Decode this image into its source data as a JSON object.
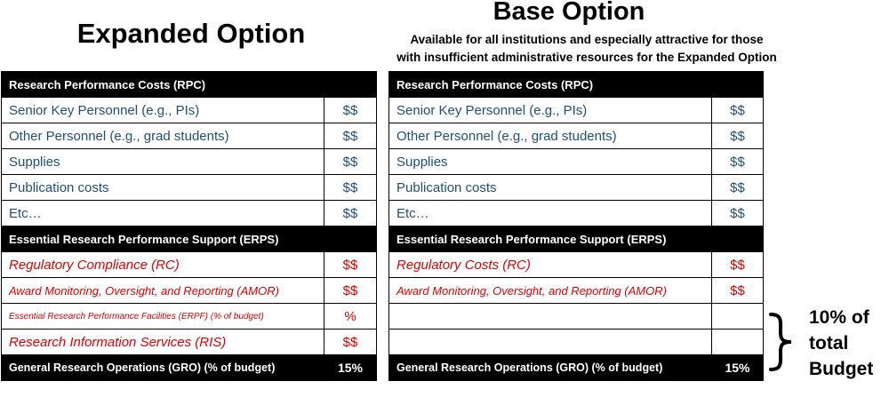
{
  "expanded": {
    "title": "Expanded Option",
    "rpc_header": "Research Performance Costs (RPC)",
    "rpc_items": [
      {
        "label": "Senior Key Personnel (e.g., PIs)",
        "value": "$$"
      },
      {
        "label": "Other Personnel (e.g., grad students)",
        "value": "$$"
      },
      {
        "label": "Supplies",
        "value": "$$"
      },
      {
        "label": "Publication costs",
        "value": "$$"
      },
      {
        "label": "Etc…",
        "value": "$$"
      }
    ],
    "erps_header": "Essential Research Performance Support (ERPS)",
    "erps_items": [
      {
        "label": "Regulatory Compliance (RC)",
        "value": "$$"
      },
      {
        "label": "Award Monitoring, Oversight, and Reporting (AMOR)",
        "value": "$$"
      },
      {
        "label": "Essential Research Performance Facilities (ERPF) (% of budget)",
        "value": "%"
      },
      {
        "label": "Research Information Services (RIS)",
        "value": "$$"
      }
    ],
    "gro_label": "General Research Operations (GRO) (% of budget)",
    "gro_value": "15%"
  },
  "base": {
    "title": "Base Option",
    "subtitle_line1": "Available for all institutions and especially attractive for those",
    "subtitle_line2": "with insufficient administrative resources for the Expanded Option",
    "rpc_header": "Research Performance Costs (RPC)",
    "rpc_items": [
      {
        "label": "Senior Key Personnel (e.g., PIs)",
        "value": "$$"
      },
      {
        "label": "Other Personnel (e.g., grad students)",
        "value": "$$"
      },
      {
        "label": "Supplies",
        "value": "$$"
      },
      {
        "label": "Publication costs",
        "value": "$$"
      },
      {
        "label": "Etc…",
        "value": "$$"
      }
    ],
    "erps_header": "Essential Research Performance Support  (ERPS)",
    "erps_items": [
      {
        "label": "Regulatory Costs (RC)",
        "value": "$$"
      },
      {
        "label": "Award Monitoring, Oversight, and Reporting (AMOR)",
        "value": "$$"
      },
      {
        "label": "",
        "value": ""
      },
      {
        "label": "",
        "value": ""
      }
    ],
    "gro_label": "General Research Operations (GRO) (% of budget)",
    "gro_value": "15%"
  },
  "note": {
    "line1": "10% of",
    "line2": "total",
    "line3": "Budget"
  }
}
